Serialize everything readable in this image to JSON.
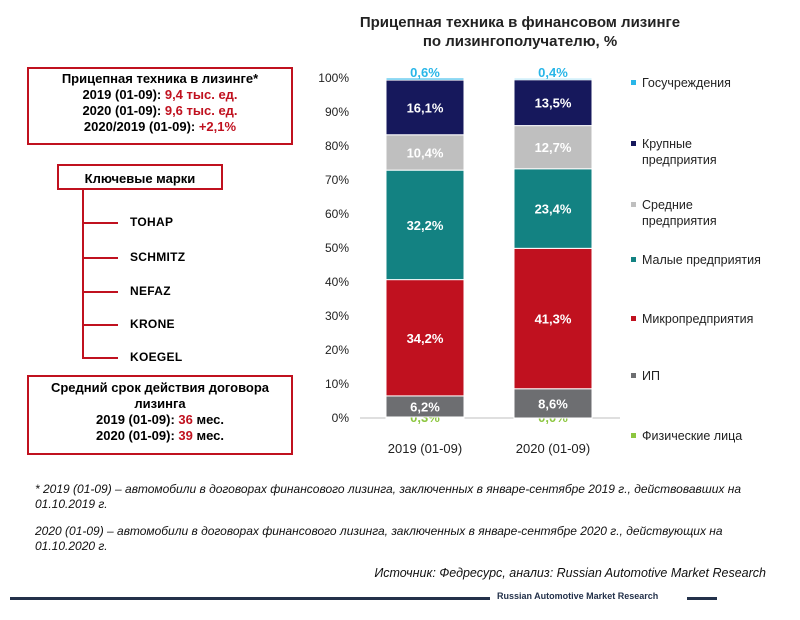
{
  "info_box": {
    "line1": "Прицепная техника в лизинге*",
    "line2_label": "2019 (01-09): ",
    "line2_value": "9,4 тыс. ед.",
    "line3_label": "2020 (01-09): ",
    "line3_value": "9,6 тыс. ед.",
    "line4_label": "2020/2019 (01-09): ",
    "line4_value": "+2,1%"
  },
  "brands": {
    "header": "Ключевые марки",
    "items": [
      "TOHAP",
      "SCHMITZ",
      "NEFAZ",
      "KRONE",
      "KOEGEL"
    ]
  },
  "contract_box": {
    "title": "Средний срок действия договора лизинга",
    "line1_label": "2019 (01-09): ",
    "line1_value": "36",
    "line1_unit": " мес.",
    "line2_label": "2020 (01-09): ",
    "line2_value": "39",
    "line2_unit": " мес."
  },
  "chart_title": {
    "line1": "Прицепная техника в финансовом лизинге",
    "line2": "по лизингополучателю, %"
  },
  "chart_data": {
    "type": "bar",
    "stacked": true,
    "categories": [
      "2019 (01-09)",
      "2020 (01-09)"
    ],
    "series": [
      {
        "name": "Физические лица",
        "values": [
          0.3,
          0.0
        ],
        "labels": [
          "0,3%",
          "0,0%"
        ],
        "color": "#8cc63f"
      },
      {
        "name": "ИП",
        "values": [
          6.2,
          8.6
        ],
        "labels": [
          "6,2%",
          "8,6%"
        ],
        "color": "#6d6e71"
      },
      {
        "name": "Микропредприятия",
        "values": [
          34.2,
          41.3
        ],
        "labels": [
          "34,2%",
          "41,3%"
        ],
        "color": "#c0111f"
      },
      {
        "name": "Малые предприятия",
        "values": [
          32.2,
          23.4
        ],
        "labels": [
          "32,2%",
          "23,4%"
        ],
        "color": "#138282"
      },
      {
        "name": "Средние предприятия",
        "values": [
          10.4,
          12.7
        ],
        "labels": [
          "10,4%",
          "12,7%"
        ],
        "color": "#bfbfbf"
      },
      {
        "name": "Крупные предприятия",
        "values": [
          16.1,
          13.5
        ],
        "labels": [
          "16,1%",
          "13,5%"
        ],
        "color": "#16185c"
      },
      {
        "name": "Госучреждения",
        "values": [
          0.6,
          0.4
        ],
        "labels": [
          "0,6%",
          "0,4%"
        ],
        "color": "#29b6e8"
      }
    ],
    "yticks": [
      "0%",
      "10%",
      "20%",
      "30%",
      "40%",
      "50%",
      "60%",
      "70%",
      "80%",
      "90%",
      "100%"
    ],
    "ylim": [
      0,
      100
    ],
    "legend": {
      "position": "right",
      "entries": [
        {
          "label": "Госучреждения",
          "color": "#29b6e8"
        },
        {
          "label": "Крупные\nпредприятия",
          "color": "#16185c"
        },
        {
          "label": "Средние\nпредприятия",
          "color": "#bfbfbf"
        },
        {
          "label": "Малые предприятия",
          "color": "#138282"
        },
        {
          "label": "Микропредприятия",
          "color": "#c0111f"
        },
        {
          "label": "ИП",
          "color": "#6d6e71"
        },
        {
          "label": "Физические лица",
          "color": "#8cc63f"
        }
      ]
    },
    "grid": false
  },
  "footnotes": {
    "note1": "* 2019 (01-09) – автомобили в договорах финансового лизинга, заключенных в январе-сентябре 2019 г., действовавших на 01.10.2019 г.",
    "note2": "2020 (01-09) – автомобили в договорах финансового лизинга, заключенных в январе-сентябре 2020 г., действующих на 01.10.2020 г."
  },
  "source": "Источник: Федресурс, анализ: Russian Automotive Market Research",
  "brand_caption": "Russian Automotive Market Research"
}
